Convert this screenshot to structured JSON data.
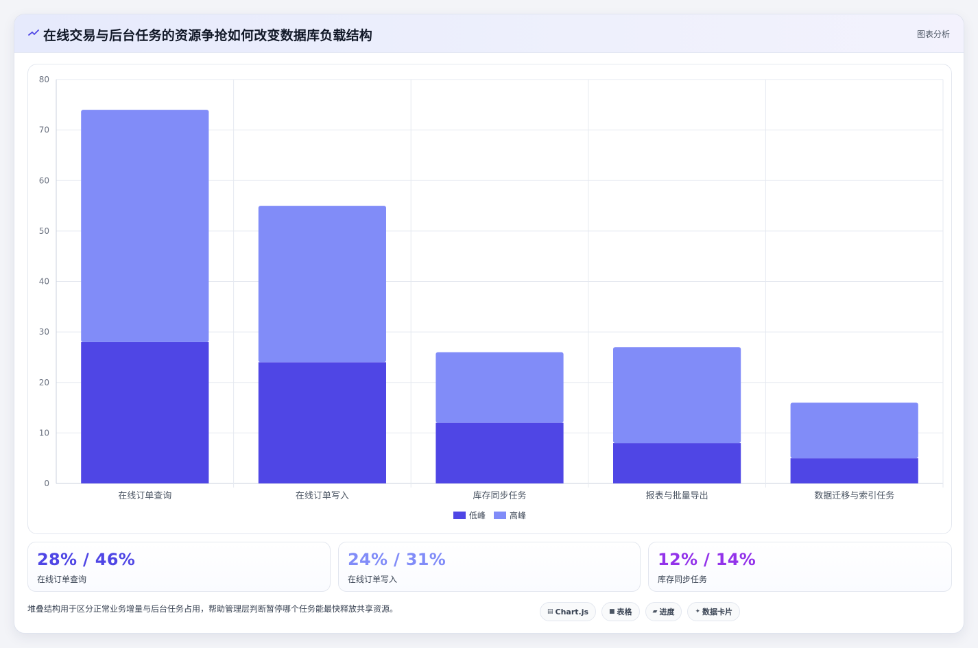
{
  "header": {
    "title": "在线交易与后台任务的资源争抢如何改变数据库负载结构",
    "link": "图表分析",
    "icon": "trend-icon"
  },
  "chart_data": {
    "type": "bar",
    "stacked": true,
    "categories": [
      "在线订单查询",
      "在线订单写入",
      "库存同步任务",
      "报表与批量导出",
      "数据迁移与索引任务"
    ],
    "series": [
      {
        "name": "低峰",
        "values": [
          28,
          24,
          12,
          8,
          5
        ],
        "color": "#4f46e5"
      },
      {
        "name": "高峰",
        "values": [
          46,
          31,
          14,
          19,
          11
        ],
        "color": "#818cf8"
      }
    ],
    "ylim": [
      0,
      80
    ],
    "yticks": [
      0,
      10,
      20,
      30,
      40,
      50,
      60,
      70,
      80
    ],
    "grid": true,
    "legend": "bottom"
  },
  "stats": [
    {
      "value": "28% / 46%",
      "label": "在线订单查询",
      "color": "#4f46e5"
    },
    {
      "value": "24% / 31%",
      "label": "在线订单写入",
      "color": "#818cf8"
    },
    {
      "value": "12% / 14%",
      "label": "库存同步任务",
      "color": "#9333ea"
    }
  ],
  "footnote": "堆叠结构用于区分正常业务增量与后台任务占用，帮助管理层判断暂停哪个任务能最快释放共享资源。",
  "tags": [
    {
      "icon": "▤",
      "label": "Chart.js"
    },
    {
      "icon": "■",
      "label": "表格"
    },
    {
      "icon": "▰",
      "label": "进度"
    },
    {
      "icon": "✦",
      "label": "数据卡片"
    }
  ]
}
